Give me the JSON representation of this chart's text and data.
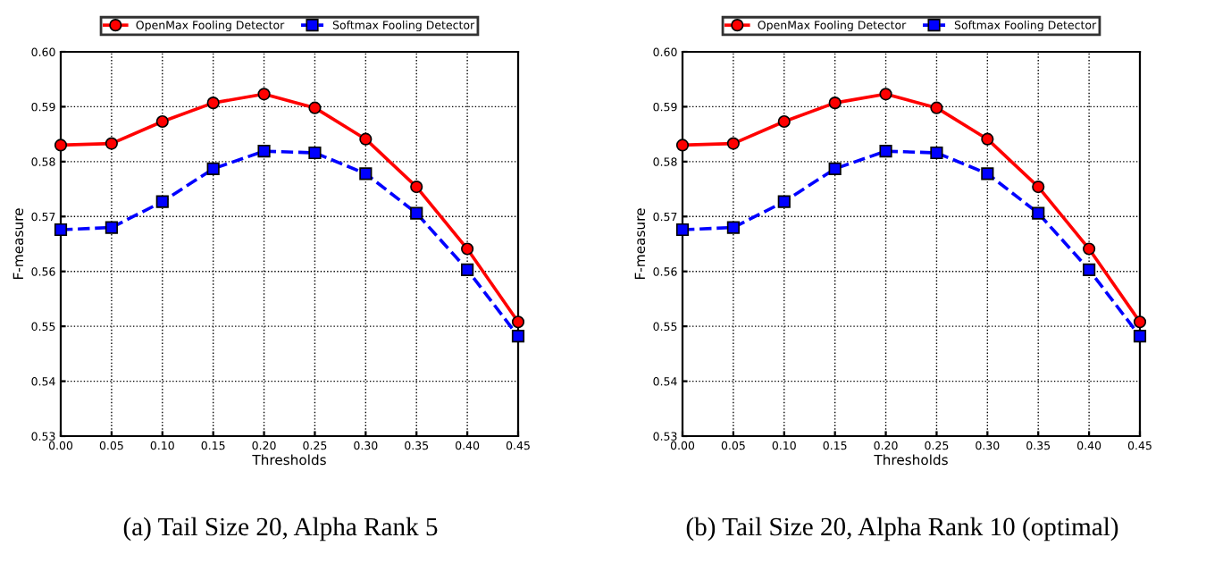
{
  "chart_data": [
    {
      "type": "line",
      "x": [
        0.0,
        0.05,
        0.1,
        0.15,
        0.2,
        0.25,
        0.3,
        0.35,
        0.4,
        0.45
      ],
      "xlabel": "Thresholds",
      "ylabel": "F-measure",
      "xlim": [
        0.0,
        0.45
      ],
      "ylim": [
        0.53,
        0.6
      ],
      "xticks": [
        {
          "value": 0.0,
          "label": "0.00"
        },
        0.05,
        {
          "value": 0.1,
          "label": "0.10"
        },
        0.15,
        {
          "value": 0.2,
          "label": "0.20"
        },
        0.25,
        {
          "value": 0.3,
          "label": "0.30"
        },
        0.35,
        {
          "value": 0.4,
          "label": "0.40"
        },
        0.45
      ],
      "yticks": [
        0.53,
        0.54,
        0.55,
        0.56,
        0.57,
        0.58,
        0.59,
        {
          "value": 0.6,
          "label": "0.60"
        }
      ],
      "grid": true,
      "legend": "top",
      "series": [
        {
          "name": "OpenMax Fooling Detector",
          "color": "#ff0000",
          "marker": "circle",
          "line_style": "solid",
          "values": [
            0.583,
            0.5833,
            0.5873,
            0.5907,
            0.5923,
            0.5898,
            0.5841,
            0.5754,
            0.5641,
            0.5508
          ]
        },
        {
          "name": "Softmax Fooling Detector",
          "color": "#0000ff",
          "marker": "square",
          "line_style": "dashed",
          "values": [
            0.5676,
            0.568,
            0.5727,
            0.5787,
            0.5819,
            0.5816,
            0.5778,
            0.5706,
            0.5603,
            0.5482
          ]
        }
      ],
      "annotations": [
        "(a) Tail Size 20, Alpha Rank 5"
      ]
    },
    {
      "type": "line",
      "x": [
        0.0,
        0.05,
        0.1,
        0.15,
        0.2,
        0.25,
        0.3,
        0.35,
        0.4,
        0.45
      ],
      "xlabel": "Thresholds",
      "ylabel": "F-measure",
      "xlim": [
        0.0,
        0.45
      ],
      "ylim": [
        0.53,
        0.6
      ],
      "xticks": [
        {
          "value": 0.0,
          "label": "0.00"
        },
        0.05,
        {
          "value": 0.1,
          "label": "0.10"
        },
        0.15,
        {
          "value": 0.2,
          "label": "0.20"
        },
        0.25,
        {
          "value": 0.3,
          "label": "0.30"
        },
        0.35,
        {
          "value": 0.4,
          "label": "0.40"
        },
        0.45
      ],
      "yticks": [
        0.53,
        0.54,
        0.55,
        0.56,
        0.57,
        0.58,
        0.59,
        {
          "value": 0.6,
          "label": "0.60"
        }
      ],
      "grid": true,
      "legend": "top",
      "series": [
        {
          "name": "OpenMax Fooling Detector",
          "color": "#ff0000",
          "marker": "circle",
          "line_style": "solid",
          "values": [
            0.583,
            0.5833,
            0.5873,
            0.5907,
            0.5923,
            0.5898,
            0.5841,
            0.5754,
            0.5641,
            0.5508
          ]
        },
        {
          "name": "Softmax Fooling Detector",
          "color": "#0000ff",
          "marker": "square",
          "line_style": "dashed",
          "values": [
            0.5676,
            0.568,
            0.5727,
            0.5787,
            0.5819,
            0.5816,
            0.5778,
            0.5706,
            0.5603,
            0.5482
          ]
        }
      ],
      "annotations": [
        "(b) Tail Size 20, Alpha Rank 10 (optimal)"
      ]
    }
  ]
}
